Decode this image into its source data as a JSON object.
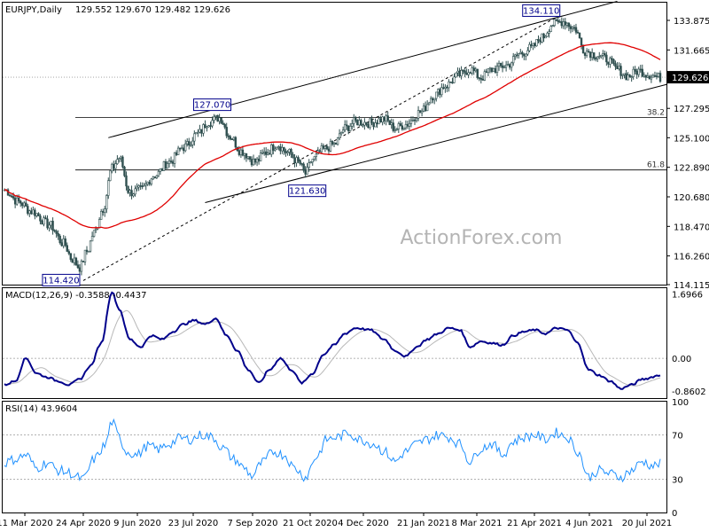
{
  "header": {
    "title": "EURJPY,Daily",
    "ohlc": "129.552 129.670 129.482 129.626"
  },
  "watermark": "ActionForex.com",
  "colors": {
    "candle": "#2f4f4f",
    "sma": "#e00000",
    "macd": "#00008b",
    "signal": "#b8b8b8",
    "rsi": "#1e90ff",
    "lines": "#000000",
    "price_label_bg": "#000000"
  },
  "chart_data": [
    {
      "type": "candlestick",
      "title": "EURJPY,Daily",
      "ylim": [
        114.115,
        135.2
      ],
      "y_ticks": [
        "133.875",
        "131.665",
        "129.626",
        "127.295",
        "125.100",
        "122.890",
        "120.680",
        "118.470",
        "116.260",
        "114.115"
      ],
      "x_ticks": [
        "11 Mar 2020",
        "24 Apr 2020",
        "9 Jun 2020",
        "23 Jul 2020",
        "7 Sep 2020",
        "21 Oct 2020",
        "4 Dec 2020",
        "21 Jan 2021",
        "8 Mar 2021",
        "21 Apr 2021",
        "4 Jun 2021",
        "20 Jul 2021"
      ],
      "last_price": "129.626",
      "anchors": [
        {
          "i": 0,
          "v": 121.2
        },
        {
          "i": 8,
          "v": 120.3
        },
        {
          "i": 15,
          "v": 119.6
        },
        {
          "i": 25,
          "v": 118.6
        },
        {
          "i": 33,
          "v": 117.2
        },
        {
          "i": 38,
          "v": 116.0
        },
        {
          "i": 42,
          "v": 115.4
        },
        {
          "i": 46,
          "v": 116.6
        },
        {
          "i": 50,
          "v": 118.0
        },
        {
          "i": 55,
          "v": 119.8
        },
        {
          "i": 60,
          "v": 122.8
        },
        {
          "i": 64,
          "v": 123.6
        },
        {
          "i": 70,
          "v": 121.0
        },
        {
          "i": 76,
          "v": 121.2
        },
        {
          "i": 84,
          "v": 122.3
        },
        {
          "i": 92,
          "v": 123.3
        },
        {
          "i": 100,
          "v": 124.4
        },
        {
          "i": 108,
          "v": 125.4
        },
        {
          "i": 114,
          "v": 126.3
        },
        {
          "i": 120,
          "v": 126.6
        },
        {
          "i": 126,
          "v": 125.2
        },
        {
          "i": 132,
          "v": 124.1
        },
        {
          "i": 140,
          "v": 123.3
        },
        {
          "i": 146,
          "v": 124.0
        },
        {
          "i": 152,
          "v": 124.6
        },
        {
          "i": 158,
          "v": 124.0
        },
        {
          "i": 164,
          "v": 123.3
        },
        {
          "i": 168,
          "v": 122.4
        },
        {
          "i": 172,
          "v": 123.5
        },
        {
          "i": 178,
          "v": 124.2
        },
        {
          "i": 184,
          "v": 124.6
        },
        {
          "i": 190,
          "v": 125.8
        },
        {
          "i": 196,
          "v": 126.3
        },
        {
          "i": 204,
          "v": 126.2
        },
        {
          "i": 212,
          "v": 126.5
        },
        {
          "i": 218,
          "v": 125.8
        },
        {
          "i": 224,
          "v": 126.1
        },
        {
          "i": 232,
          "v": 127.0
        },
        {
          "i": 240,
          "v": 128.3
        },
        {
          "i": 246,
          "v": 129.0
        },
        {
          "i": 254,
          "v": 129.8
        },
        {
          "i": 260,
          "v": 130.2
        },
        {
          "i": 266,
          "v": 129.6
        },
        {
          "i": 272,
          "v": 130.2
        },
        {
          "i": 280,
          "v": 130.5
        },
        {
          "i": 288,
          "v": 131.4
        },
        {
          "i": 294,
          "v": 131.8
        },
        {
          "i": 300,
          "v": 132.6
        },
        {
          "i": 306,
          "v": 133.6
        },
        {
          "i": 312,
          "v": 133.8
        },
        {
          "i": 318,
          "v": 133.3
        },
        {
          "i": 324,
          "v": 131.6
        },
        {
          "i": 330,
          "v": 131.3
        },
        {
          "i": 336,
          "v": 131.0
        },
        {
          "i": 342,
          "v": 130.2
        },
        {
          "i": 348,
          "v": 129.7
        },
        {
          "i": 354,
          "v": 130.1
        },
        {
          "i": 360,
          "v": 129.8
        },
        {
          "i": 366,
          "v": 129.6
        }
      ],
      "labels": [
        {
          "text": "114.420",
          "i": 44,
          "v": 114.42
        },
        {
          "text": "127.070",
          "i": 116,
          "v": 127.07
        },
        {
          "text": "121.630",
          "i": 169,
          "v": 121.63
        },
        {
          "text": "134.110",
          "i": 308,
          "v": 134.11
        }
      ],
      "fib_levels": [
        {
          "label": "38.2",
          "v": 126.62
        },
        {
          "label": "61.8",
          "v": 122.69
        }
      ],
      "channel": {
        "upper": [
          {
            "i": 58,
            "v": 125.1
          },
          {
            "i": 342,
            "v": 135.3
          }
        ],
        "lower": [
          {
            "i": 112,
            "v": 120.25
          },
          {
            "i": 370,
            "v": 129.1
          }
        ],
        "trend": [
          {
            "i": 44,
            "v": 114.42
          },
          {
            "i": 308,
            "v": 134.11
          }
        ]
      }
    },
    {
      "type": "line",
      "title": "MACD(12,26,9) -0.3588 -0.4437",
      "ylim": [
        -1.05,
        1.85
      ],
      "y_ticks": [
        "1.6966",
        "0.00",
        "-0.8602"
      ],
      "anchors": [
        {
          "i": 0,
          "v": -0.7
        },
        {
          "i": 6,
          "v": -0.6
        },
        {
          "i": 12,
          "v": 0.0
        },
        {
          "i": 18,
          "v": -0.4
        },
        {
          "i": 24,
          "v": -0.5
        },
        {
          "i": 30,
          "v": -0.6
        },
        {
          "i": 36,
          "v": -0.7
        },
        {
          "i": 42,
          "v": -0.55
        },
        {
          "i": 48,
          "v": -0.2
        },
        {
          "i": 54,
          "v": 0.4
        },
        {
          "i": 60,
          "v": 1.75
        },
        {
          "i": 64,
          "v": 1.3
        },
        {
          "i": 70,
          "v": 0.5
        },
        {
          "i": 76,
          "v": 0.3
        },
        {
          "i": 82,
          "v": 0.6
        },
        {
          "i": 88,
          "v": 0.5
        },
        {
          "i": 94,
          "v": 0.7
        },
        {
          "i": 100,
          "v": 0.9
        },
        {
          "i": 106,
          "v": 1.0
        },
        {
          "i": 112,
          "v": 0.9
        },
        {
          "i": 118,
          "v": 1.05
        },
        {
          "i": 124,
          "v": 0.6
        },
        {
          "i": 130,
          "v": 0.2
        },
        {
          "i": 136,
          "v": -0.3
        },
        {
          "i": 142,
          "v": -0.65
        },
        {
          "i": 148,
          "v": -0.3
        },
        {
          "i": 154,
          "v": 0.0
        },
        {
          "i": 160,
          "v": -0.3
        },
        {
          "i": 166,
          "v": -0.65
        },
        {
          "i": 172,
          "v": -0.4
        },
        {
          "i": 178,
          "v": 0.1
        },
        {
          "i": 184,
          "v": 0.35
        },
        {
          "i": 190,
          "v": 0.65
        },
        {
          "i": 196,
          "v": 0.8
        },
        {
          "i": 204,
          "v": 0.75
        },
        {
          "i": 212,
          "v": 0.5
        },
        {
          "i": 218,
          "v": 0.2
        },
        {
          "i": 224,
          "v": 0.05
        },
        {
          "i": 230,
          "v": 0.3
        },
        {
          "i": 236,
          "v": 0.5
        },
        {
          "i": 242,
          "v": 0.65
        },
        {
          "i": 248,
          "v": 0.8
        },
        {
          "i": 254,
          "v": 0.75
        },
        {
          "i": 260,
          "v": 0.3
        },
        {
          "i": 266,
          "v": 0.45
        },
        {
          "i": 272,
          "v": 0.4
        },
        {
          "i": 278,
          "v": 0.35
        },
        {
          "i": 284,
          "v": 0.6
        },
        {
          "i": 290,
          "v": 0.7
        },
        {
          "i": 296,
          "v": 0.75
        },
        {
          "i": 302,
          "v": 0.65
        },
        {
          "i": 308,
          "v": 0.8
        },
        {
          "i": 314,
          "v": 0.75
        },
        {
          "i": 320,
          "v": 0.4
        },
        {
          "i": 326,
          "v": -0.3
        },
        {
          "i": 332,
          "v": -0.45
        },
        {
          "i": 338,
          "v": -0.6
        },
        {
          "i": 344,
          "v": -0.8
        },
        {
          "i": 350,
          "v": -0.7
        },
        {
          "i": 356,
          "v": -0.55
        },
        {
          "i": 366,
          "v": -0.45
        }
      ],
      "signal_lag": 6
    },
    {
      "type": "line",
      "title": "RSI(14) 43.9604",
      "ylim": [
        0,
        100
      ],
      "y_ticks": [
        "100",
        "70",
        "30",
        "0"
      ],
      "levels": [
        70,
        30
      ],
      "anchors": [
        {
          "i": 0,
          "v": 45
        },
        {
          "i": 6,
          "v": 48
        },
        {
          "i": 12,
          "v": 52
        },
        {
          "i": 18,
          "v": 40
        },
        {
          "i": 24,
          "v": 45
        },
        {
          "i": 30,
          "v": 38
        },
        {
          "i": 36,
          "v": 36
        },
        {
          "i": 40,
          "v": 32
        },
        {
          "i": 44,
          "v": 30
        },
        {
          "i": 50,
          "v": 48
        },
        {
          "i": 56,
          "v": 60
        },
        {
          "i": 60,
          "v": 82
        },
        {
          "i": 64,
          "v": 68
        },
        {
          "i": 68,
          "v": 55
        },
        {
          "i": 74,
          "v": 52
        },
        {
          "i": 80,
          "v": 60
        },
        {
          "i": 86,
          "v": 57
        },
        {
          "i": 92,
          "v": 62
        },
        {
          "i": 98,
          "v": 67
        },
        {
          "i": 104,
          "v": 66
        },
        {
          "i": 110,
          "v": 70
        },
        {
          "i": 116,
          "v": 68
        },
        {
          "i": 122,
          "v": 58
        },
        {
          "i": 128,
          "v": 48
        },
        {
          "i": 134,
          "v": 40
        },
        {
          "i": 138,
          "v": 33
        },
        {
          "i": 144,
          "v": 45
        },
        {
          "i": 150,
          "v": 55
        },
        {
          "i": 156,
          "v": 52
        },
        {
          "i": 162,
          "v": 40
        },
        {
          "i": 168,
          "v": 32
        },
        {
          "i": 174,
          "v": 50
        },
        {
          "i": 180,
          "v": 66
        },
        {
          "i": 186,
          "v": 68
        },
        {
          "i": 192,
          "v": 72
        },
        {
          "i": 198,
          "v": 66
        },
        {
          "i": 206,
          "v": 62
        },
        {
          "i": 212,
          "v": 55
        },
        {
          "i": 218,
          "v": 46
        },
        {
          "i": 224,
          "v": 55
        },
        {
          "i": 230,
          "v": 62
        },
        {
          "i": 236,
          "v": 66
        },
        {
          "i": 242,
          "v": 70
        },
        {
          "i": 248,
          "v": 68
        },
        {
          "i": 254,
          "v": 62
        },
        {
          "i": 260,
          "v": 46
        },
        {
          "i": 266,
          "v": 58
        },
        {
          "i": 272,
          "v": 62
        },
        {
          "i": 278,
          "v": 52
        },
        {
          "i": 284,
          "v": 64
        },
        {
          "i": 290,
          "v": 68
        },
        {
          "i": 296,
          "v": 70
        },
        {
          "i": 302,
          "v": 66
        },
        {
          "i": 308,
          "v": 72
        },
        {
          "i": 314,
          "v": 68
        },
        {
          "i": 320,
          "v": 55
        },
        {
          "i": 326,
          "v": 32
        },
        {
          "i": 332,
          "v": 38
        },
        {
          "i": 338,
          "v": 35
        },
        {
          "i": 344,
          "v": 32
        },
        {
          "i": 350,
          "v": 38
        },
        {
          "i": 356,
          "v": 46
        },
        {
          "i": 362,
          "v": 42
        },
        {
          "i": 366,
          "v": 44
        }
      ]
    }
  ]
}
